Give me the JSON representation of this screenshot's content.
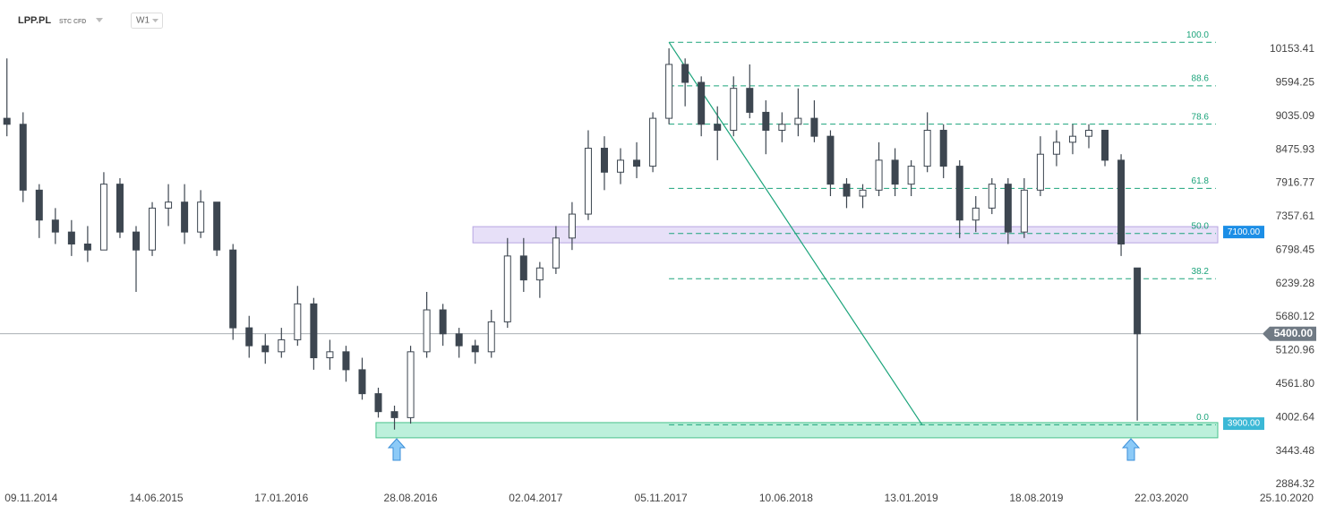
{
  "header": {
    "symbol": "LPP.PL",
    "kind": "STC CFD",
    "interval": "W1"
  },
  "chart_data": {
    "type": "candlestick",
    "xlim": [
      "16.09.2014",
      "03.01.2021"
    ],
    "xticks": [
      "09.11.2014",
      "14.06.2015",
      "17.01.2016",
      "28.08.2016",
      "02.04.2017",
      "05.11.2017",
      "10.06.2018",
      "13.01.2019",
      "18.08.2019",
      "22.03.2020",
      "25.10.2020"
    ],
    "ylim": [
      2824,
      10976
    ],
    "yticks": [
      10153.41,
      9594.25,
      9035.09,
      8475.93,
      7916.77,
      7357.61,
      6798.45,
      6239.28,
      5680.12,
      5120.96,
      {
        "value": 4561.8,
        "label": "4561.80"
      },
      4002.64,
      3443.48,
      2884.32
    ],
    "up_color": "#ffffff",
    "down_color": "#3d4650",
    "wick_color": "#3d4650",
    "candles": {
      "x": [
        "28.09.2014",
        "26.10.2014",
        "23.11.2014",
        "21.12.2014",
        "18.01.2015",
        "15.02.2015",
        "15.03.2015",
        "12.04.2015",
        "10.05.2015",
        "07.06.2015",
        "05.07.2015",
        "02.08.2015",
        "30.08.2015",
        "27.09.2015",
        "25.10.2015",
        "22.11.2015",
        "20.12.2015",
        "17.01.2016",
        "14.02.2016",
        "13.03.2016",
        "10.04.2016",
        "08.05.2016",
        "05.06.2016",
        "03.07.2016",
        "31.07.2016",
        "28.08.2016",
        "25.09.2016",
        "23.10.2016",
        "20.11.2016",
        "18.12.2016",
        "15.01.2017",
        "12.02.2017",
        "12.03.2017",
        "09.04.2017",
        "07.05.2017",
        "04.06.2017",
        "02.07.2017",
        "30.07.2017",
        "27.08.2017",
        "24.09.2017",
        "22.10.2017",
        "19.11.2017",
        "17.12.2017",
        "14.01.2018",
        "11.02.2018",
        "11.03.2018",
        "08.04.2018",
        "06.05.2018",
        "03.06.2018",
        "01.07.2018",
        "29.07.2018",
        "26.08.2018",
        "23.09.2018",
        "21.10.2018",
        "18.11.2018",
        "16.12.2018",
        "13.01.2019",
        "10.02.2019",
        "10.03.2019",
        "07.04.2019",
        "05.05.2019",
        "02.06.2019",
        "30.06.2019",
        "28.07.2019",
        "25.08.2019",
        "22.09.2019",
        "20.10.2019",
        "17.11.2019",
        "15.12.2019",
        "12.01.2020",
        "09.02.2020"
      ],
      "open": [
        9000,
        8900,
        7800,
        7300,
        7100,
        6900,
        6800,
        7900,
        7100,
        6800,
        7500,
        7600,
        7100,
        7600,
        6800,
        5500,
        5200,
        5100,
        5300,
        5900,
        5000,
        5100,
        4800,
        4400,
        4100,
        4000,
        5100,
        5800,
        5400,
        5200,
        5100,
        5600,
        6700,
        6300,
        6500,
        7000,
        7400,
        8500,
        8100,
        8300,
        8200,
        9000,
        9900,
        9600,
        8900,
        8800,
        9500,
        9100,
        8800,
        8900,
        9000,
        8700,
        7900,
        7700,
        7800,
        8300,
        7900,
        8200,
        8800,
        8200,
        7300,
        7500,
        7900,
        7100,
        7800,
        8400,
        8600,
        8700,
        8800,
        8300,
        6500
      ],
      "high": [
        10000,
        9100,
        7900,
        7500,
        7300,
        7200,
        8100,
        8000,
        7200,
        7600,
        7900,
        7900,
        7800,
        7600,
        6900,
        5700,
        5400,
        5500,
        6200,
        6000,
        5300,
        5200,
        5000,
        4500,
        4200,
        5200,
        6100,
        5900,
        5500,
        5300,
        5800,
        7000,
        7000,
        6600,
        7200,
        7600,
        8800,
        8700,
        8500,
        8600,
        9100,
        10170,
        10000,
        9700,
        9200,
        9700,
        9900,
        9300,
        9100,
        9500,
        9300,
        8800,
        8000,
        7900,
        8600,
        8500,
        8300,
        9100,
        8900,
        8300,
        7700,
        8000,
        8000,
        8000,
        8700,
        8800,
        8900,
        8900,
        8800,
        8400,
        6500
      ],
      "low": [
        8700,
        7600,
        7000,
        6900,
        6700,
        6600,
        6800,
        7000,
        6100,
        6700,
        7200,
        6900,
        7000,
        6700,
        5300,
        5000,
        4900,
        5000,
        5200,
        4800,
        4800,
        4600,
        4300,
        4000,
        3800,
        3900,
        5000,
        5200,
        5000,
        4900,
        5000,
        5500,
        6100,
        6000,
        6400,
        6800,
        7300,
        7800,
        7900,
        8000,
        8100,
        8900,
        9200,
        8700,
        8300,
        8700,
        9000,
        8400,
        8600,
        8700,
        8600,
        7700,
        7500,
        7500,
        7700,
        7700,
        7700,
        8100,
        8000,
        7000,
        7100,
        7400,
        6900,
        7000,
        7700,
        8200,
        8400,
        8500,
        8200,
        6700,
        3950
      ],
      "close": [
        8900,
        7800,
        7300,
        7100,
        6900,
        6800,
        7900,
        7100,
        6800,
        7500,
        7600,
        7100,
        7600,
        6800,
        5500,
        5200,
        5100,
        5300,
        5900,
        5000,
        5100,
        4800,
        4400,
        4100,
        4000,
        5100,
        5800,
        5400,
        5200,
        5100,
        5600,
        6700,
        6300,
        6500,
        7000,
        7400,
        8500,
        8100,
        8300,
        8200,
        9000,
        9900,
        9600,
        8900,
        8800,
        9500,
        9100,
        8800,
        8900,
        9000,
        8700,
        7900,
        7700,
        7800,
        8300,
        7900,
        8200,
        8800,
        8200,
        7300,
        7500,
        7900,
        7100,
        7800,
        8400,
        8600,
        8700,
        8800,
        8300,
        6900,
        5400
      ]
    },
    "fib": {
      "start": "19.11.2017",
      "end": "01.02.2019",
      "high": 10270,
      "low": 3880,
      "color": "#1aa37a",
      "levels": [
        {
          "value": 100,
          "label": "100.0"
        },
        88.6,
        78.6,
        61.8,
        {
          "value": 50,
          "label": "50.0"
        },
        38.2,
        {
          "value": 0,
          "label": "0.0"
        }
      ]
    },
    "zones": [
      {
        "start": "14.12.2016",
        "top": 7190,
        "bottom": 6920,
        "fill": "rgba(185,165,235,0.35)",
        "stroke": "#b7a6e2",
        "tag_color": "#1c8ee6",
        "label": {
          "value": 7100,
          "label": "7100.00"
        }
      },
      {
        "start": "29.06.2016",
        "top": 3917,
        "bottom": 3663,
        "fill": "rgba(80,215,160,0.38)",
        "stroke": "#48c28c",
        "tag_color": "#3bb8d6",
        "label": {
          "value": 3900,
          "label": "3900.00"
        }
      }
    ],
    "price": {
      "value": 5400,
      "label": "5400.00",
      "color": "#707a84"
    }
  }
}
